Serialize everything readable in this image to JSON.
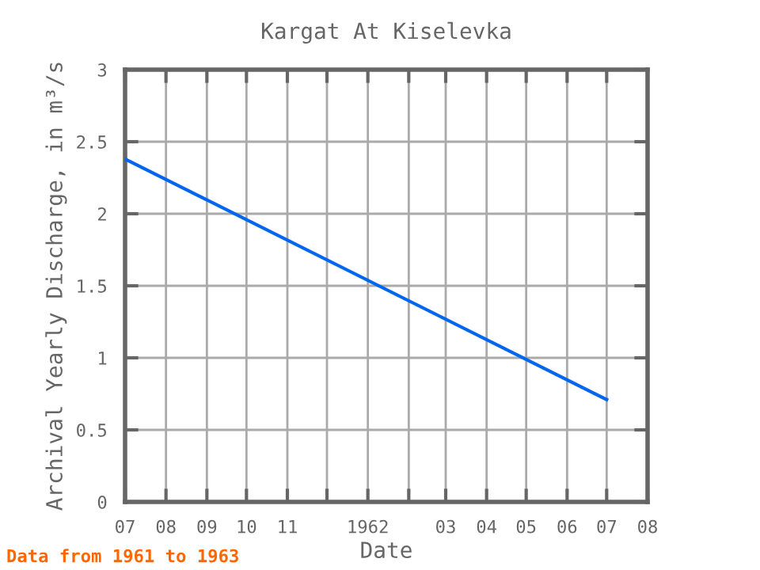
{
  "chart_data": {
    "type": "line",
    "title": "Kargat At Kiselevka",
    "xlabel": "Date",
    "ylabel": "Archival Yearly Discharge, in m³/s",
    "annotations": [
      "Data from 1961 to 1963"
    ],
    "x": [
      "1961-07",
      "1962-07"
    ],
    "series": [
      {
        "color": "#0066ee",
        "values": [
          2.38,
          0.71
        ]
      }
    ],
    "xlim": [
      "1961-07",
      "1962-08"
    ],
    "xticks": [
      {
        "value": "1961-07",
        "label": "07"
      },
      {
        "value": "1961-08",
        "label": "08"
      },
      {
        "value": "1961-09",
        "label": "09"
      },
      {
        "value": "1961-10",
        "label": "10"
      },
      {
        "value": "1961-11",
        "label": "11"
      },
      {
        "value": "1961-12",
        "label": null
      },
      {
        "value": "1962-01",
        "label": "1962"
      },
      {
        "value": "1962-02",
        "label": null
      },
      {
        "value": "1962-03",
        "label": "03"
      },
      {
        "value": "1962-04",
        "label": "04"
      },
      {
        "value": "1962-05",
        "label": "05"
      },
      {
        "value": "1962-06",
        "label": "06"
      },
      {
        "value": "1962-07",
        "label": "07"
      },
      {
        "value": "1962-08",
        "label": "08"
      }
    ],
    "ylim": [
      0,
      3
    ],
    "yticks": [
      0,
      0.5,
      1,
      1.5,
      2,
      2.5,
      3
    ],
    "grid": true,
    "marker": "none",
    "line_style": "solid",
    "legend": false
  }
}
